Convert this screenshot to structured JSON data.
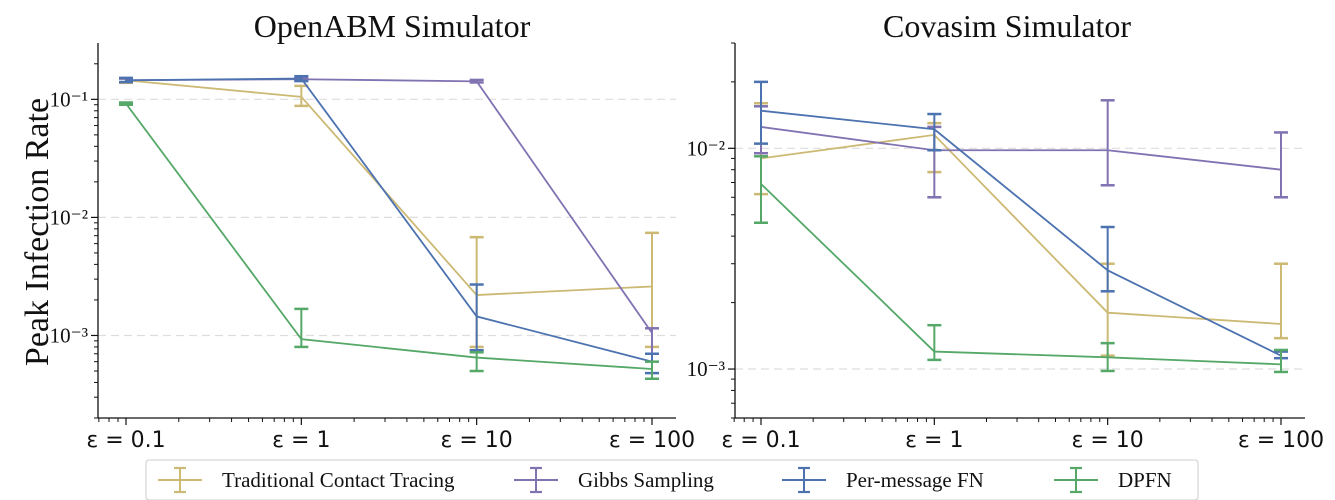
{
  "chart_data": [
    {
      "type": "line",
      "title": "OpenABM Simulator",
      "ylabel": "Peak Infection Rate",
      "xscale": "log",
      "yscale": "log",
      "ylim": [
        0.0002,
        0.3
      ],
      "x": [
        0.1,
        1,
        10,
        100
      ],
      "x_tick_labels": [
        "ε = 0.1",
        "ε = 1",
        "ε = 10",
        "ε = 100"
      ],
      "y_tick_labels": [
        "10⁻³",
        "10⁻²",
        "10⁻¹"
      ],
      "grid": "horizontal dashed at decades",
      "series": [
        {
          "name": "Traditional Contact Tracing",
          "color": "#ccb974",
          "values": [
            0.145,
            0.105,
            0.0022,
            0.0026
          ],
          "err_low": [
            0.138,
            0.088,
            0.0008,
            0.0008
          ],
          "err_high": [
            0.15,
            0.13,
            0.0068,
            0.0074
          ]
        },
        {
          "name": "Gibbs Sampling",
          "color": "#8172b2",
          "values": [
            0.145,
            0.148,
            0.142,
            0.00105
          ],
          "err_low": [
            0.14,
            0.143,
            0.139,
            0.0007
          ],
          "err_high": [
            0.15,
            0.153,
            0.146,
            0.00115
          ]
        },
        {
          "name": "Per-message FN",
          "color": "#4c72b0",
          "values": [
            0.145,
            0.15,
            0.00145,
            0.0006
          ],
          "err_low": [
            0.14,
            0.143,
            0.00075,
            0.00048
          ],
          "err_high": [
            0.152,
            0.157,
            0.0027,
            0.0007
          ]
        },
        {
          "name": "DPFN",
          "color": "#55a868",
          "values": [
            0.092,
            0.00093,
            0.00065,
            0.00052
          ],
          "err_low": [
            0.09,
            0.0008,
            0.0005,
            0.00043
          ],
          "err_high": [
            0.094,
            0.00168,
            0.00072,
            0.0006
          ]
        }
      ]
    },
    {
      "type": "line",
      "title": "Covasim Simulator",
      "xscale": "log",
      "yscale": "log",
      "ylim": [
        0.0006,
        0.03
      ],
      "x": [
        0.1,
        1,
        10,
        100
      ],
      "x_tick_labels": [
        "ε = 0.1",
        "ε = 1",
        "ε = 10",
        "ε = 100"
      ],
      "y_tick_labels": [
        "10⁻³",
        "10⁻²"
      ],
      "grid": "horizontal dashed at decades",
      "series": [
        {
          "name": "Traditional Contact Tracing",
          "color": "#ccb974",
          "values": [
            0.009,
            0.0115,
            0.0018,
            0.0016
          ],
          "err_low": [
            0.0062,
            0.0078,
            0.00115,
            0.00138
          ],
          "err_high": [
            0.016,
            0.013,
            0.003,
            0.003
          ]
        },
        {
          "name": "Gibbs Sampling",
          "color": "#8172b2",
          "values": [
            0.0125,
            0.0098,
            0.0098,
            0.008
          ],
          "err_low": [
            0.0095,
            0.006,
            0.0068,
            0.006
          ],
          "err_high": [
            0.0155,
            0.0125,
            0.0165,
            0.0118
          ]
        },
        {
          "name": "Per-message FN",
          "color": "#4c72b0",
          "values": [
            0.0148,
            0.0122,
            0.0028,
            0.00115
          ],
          "err_low": [
            0.0105,
            0.0098,
            0.00225,
            0.00112
          ],
          "err_high": [
            0.02,
            0.0143,
            0.0044,
            0.0012
          ]
        },
        {
          "name": "DPFN",
          "color": "#55a868",
          "values": [
            0.0069,
            0.0012,
            0.00113,
            0.00105
          ],
          "err_low": [
            0.0046,
            0.0011,
            0.00098,
            0.00097
          ],
          "err_high": [
            0.0092,
            0.00158,
            0.00131,
            0.00122
          ]
        }
      ]
    }
  ],
  "legend": {
    "placement": "bottom-center",
    "items": [
      "Traditional Contact Tracing",
      "Gibbs Sampling",
      "Per-message FN",
      "DPFN"
    ],
    "colors": [
      "#ccb974",
      "#8172b2",
      "#4c72b0",
      "#55a868"
    ]
  }
}
